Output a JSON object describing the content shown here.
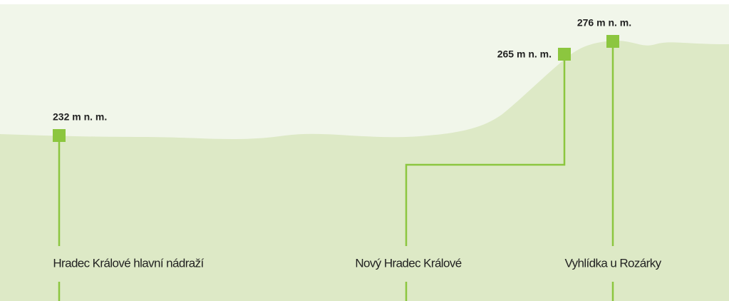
{
  "points": [
    {
      "name": "Hradec Králové hlavní nádraží",
      "elevation": "232 m n. m."
    },
    {
      "name": "Nový Hradec Králové",
      "elevation": "265 m n. m."
    },
    {
      "name": "Vyhlídka u Rozárky",
      "elevation": "276 m n. m."
    }
  ]
}
